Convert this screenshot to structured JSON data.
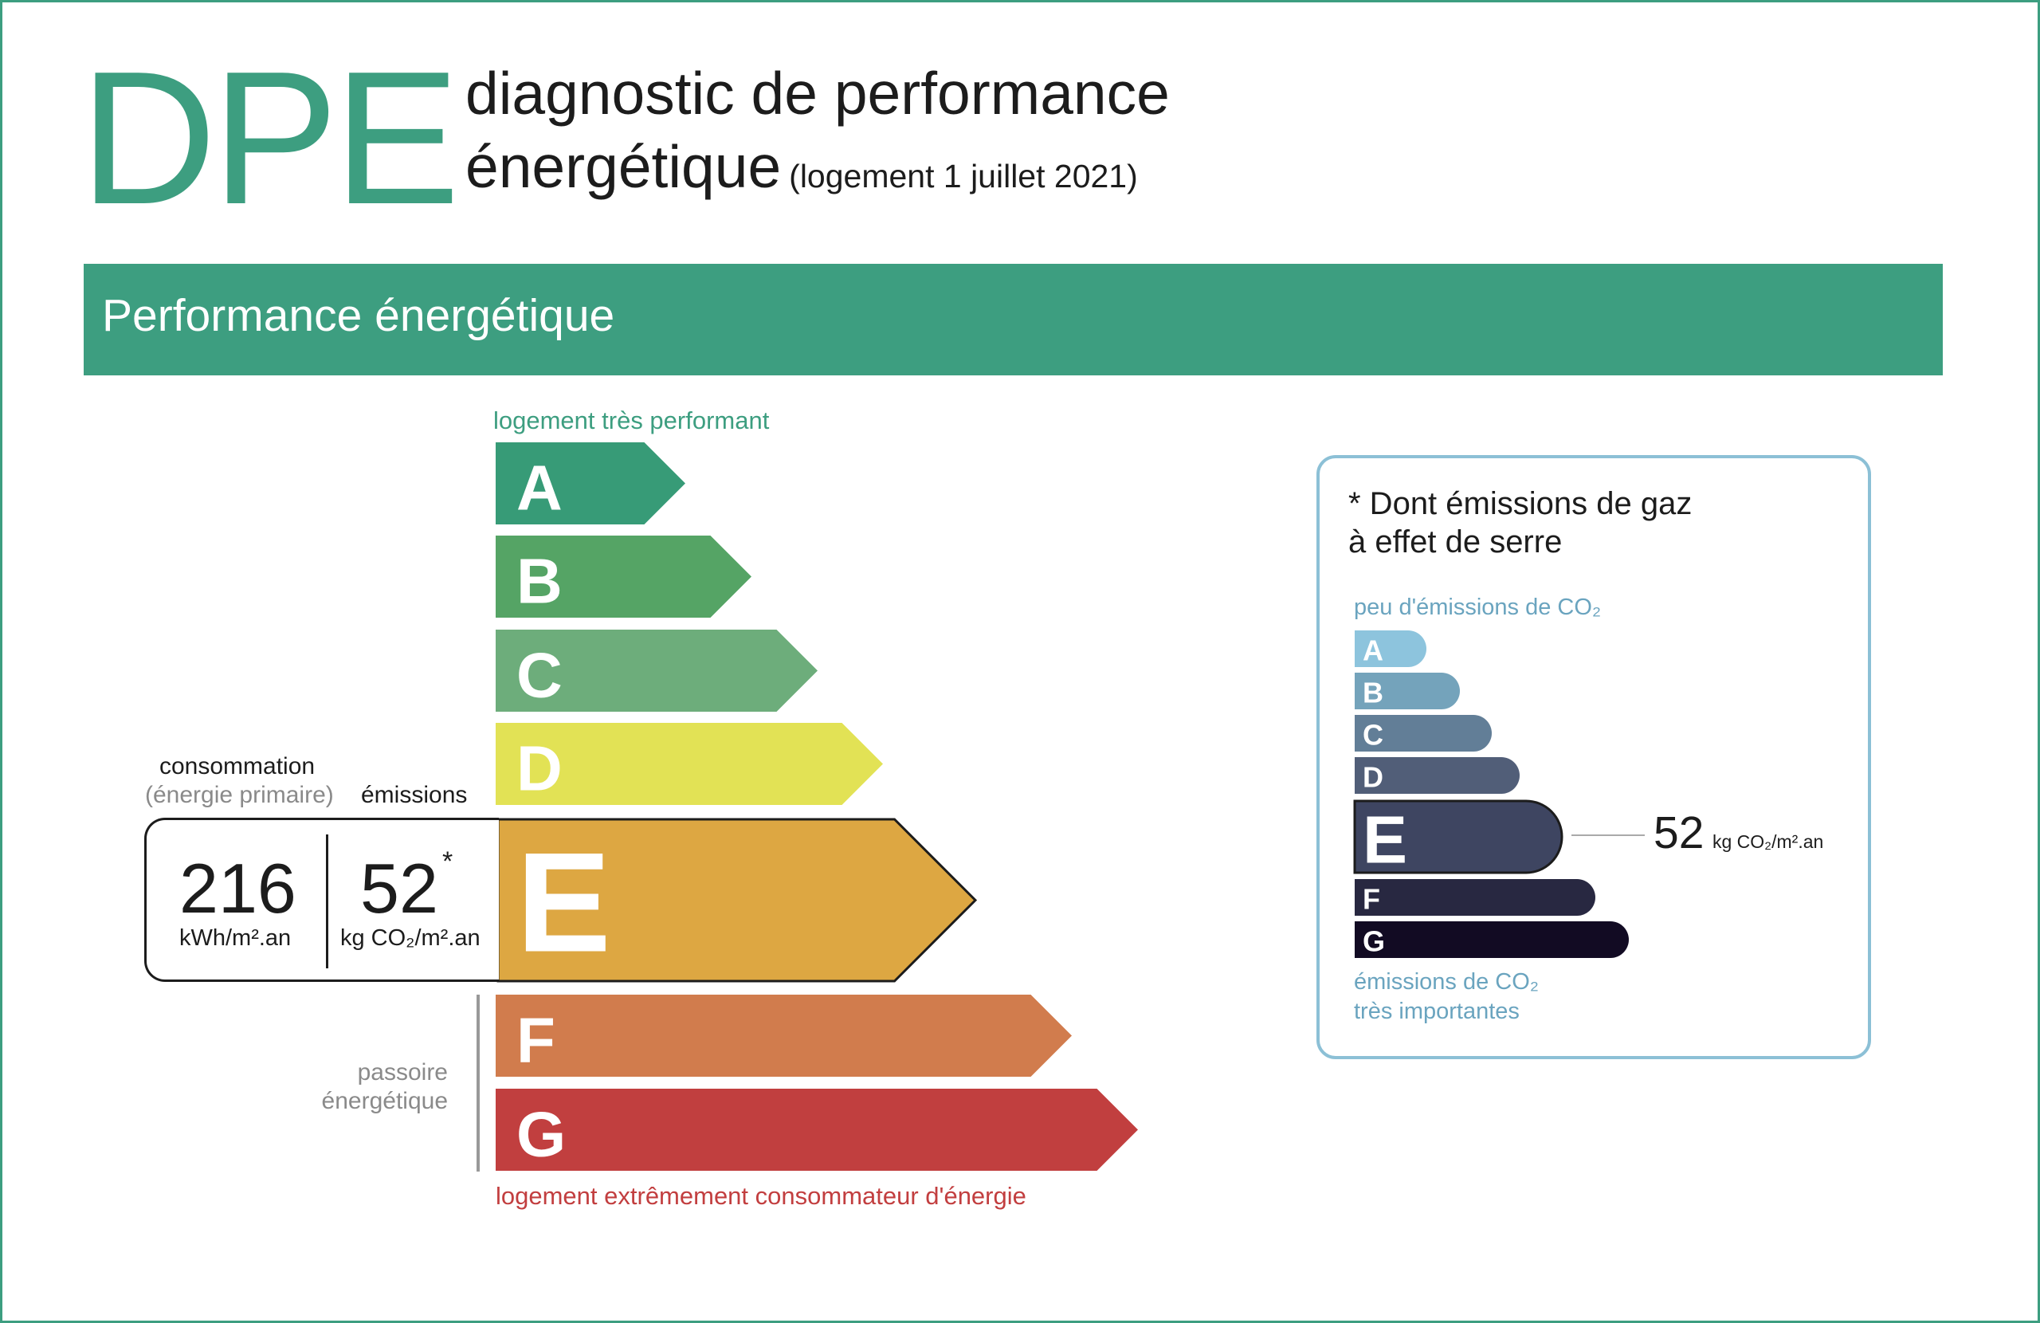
{
  "header": {
    "logo": "DPE",
    "title_line1": "diagnostic de performance",
    "title_line2": "énergétique",
    "title_note": "(logement 1 juillet 2021)"
  },
  "banner": {
    "title": "Performance énergétique"
  },
  "energy_scale": {
    "top_label": "logement très performant",
    "bottom_label": "logement extrêmement consommateur d'énergie",
    "classes": [
      {
        "letter": "A",
        "color": "#379b77"
      },
      {
        "letter": "B",
        "color": "#55a465"
      },
      {
        "letter": "C",
        "color": "#6dad7b"
      },
      {
        "letter": "D",
        "color": "#e2e255"
      },
      {
        "letter": "E",
        "color": "#dda742"
      },
      {
        "letter": "F",
        "color": "#d17c4d"
      },
      {
        "letter": "G",
        "color": "#c13f3f"
      }
    ],
    "active_class": "E",
    "passoire_line1": "passoire",
    "passoire_line2": "énergétique"
  },
  "values": {
    "consumption_heading": "consommation",
    "consumption_subheading": "(énergie primaire)",
    "emissions_heading": "émissions",
    "consumption_value": "216",
    "consumption_unit": "kWh/m².an",
    "emissions_value": "52",
    "emissions_star": "*",
    "emissions_unit": "kg CO₂/m².an"
  },
  "ges_panel": {
    "title_line1": "* Dont émissions de gaz",
    "title_line2": "à effet de serre",
    "top_label": "peu d'émissions de CO₂",
    "bottom_label_line1": "émissions de CO₂",
    "bottom_label_line2": "très importantes",
    "classes": [
      {
        "letter": "A",
        "color": "#8dc4dd"
      },
      {
        "letter": "B",
        "color": "#74a3bb"
      },
      {
        "letter": "C",
        "color": "#627e97"
      },
      {
        "letter": "D",
        "color": "#515e78"
      },
      {
        "letter": "E",
        "color": "#3e4561"
      },
      {
        "letter": "F",
        "color": "#282841"
      },
      {
        "letter": "G",
        "color": "#120b23"
      }
    ],
    "active_class": "E",
    "value": "52",
    "unit": "kg CO₂/m².an"
  }
}
